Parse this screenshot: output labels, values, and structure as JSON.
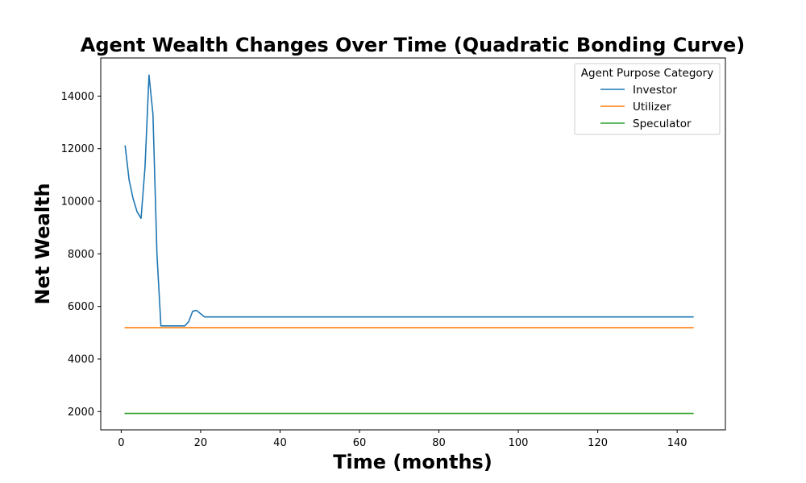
{
  "chart_data": {
    "type": "line",
    "title": "Agent Wealth Changes Over Time (Quadratic Bonding Curve)",
    "xlabel": "Time (months)",
    "ylabel": "Net Wealth",
    "xlim": [
      -5.15,
      152.15
    ],
    "ylim": [
      1305,
      15450
    ],
    "xticks": [
      0,
      20,
      40,
      60,
      80,
      100,
      120,
      140
    ],
    "yticks": [
      2000,
      4000,
      6000,
      8000,
      10000,
      12000,
      14000
    ],
    "legend": {
      "title": "Agent Purpose Category",
      "position": "top-right"
    },
    "grid": false,
    "series": [
      {
        "name": "Investor",
        "color": "#1f77b4",
        "points": [
          [
            1,
            12100
          ],
          [
            2,
            10800
          ],
          [
            3,
            10100
          ],
          [
            4,
            9600
          ],
          [
            5,
            9350
          ],
          [
            6,
            11300
          ],
          [
            7,
            14800
          ],
          [
            8,
            13300
          ],
          [
            9,
            8000
          ],
          [
            10,
            5260
          ],
          [
            11,
            5260
          ],
          [
            12,
            5260
          ],
          [
            13,
            5260
          ],
          [
            14,
            5260
          ],
          [
            15,
            5260
          ],
          [
            16,
            5260
          ],
          [
            17,
            5420
          ],
          [
            18,
            5820
          ],
          [
            19,
            5850
          ],
          [
            20,
            5720
          ],
          [
            21,
            5600
          ],
          [
            22,
            5600
          ],
          [
            30,
            5600
          ],
          [
            60,
            5600
          ],
          [
            90,
            5600
          ],
          [
            120,
            5600
          ],
          [
            144,
            5600
          ]
        ]
      },
      {
        "name": "Utilizer",
        "color": "#ff7f0e",
        "points": [
          [
            1,
            5190
          ],
          [
            144,
            5190
          ]
        ]
      },
      {
        "name": "Speculator",
        "color": "#2ca02c",
        "points": [
          [
            1,
            1930
          ],
          [
            144,
            1930
          ]
        ]
      }
    ]
  }
}
